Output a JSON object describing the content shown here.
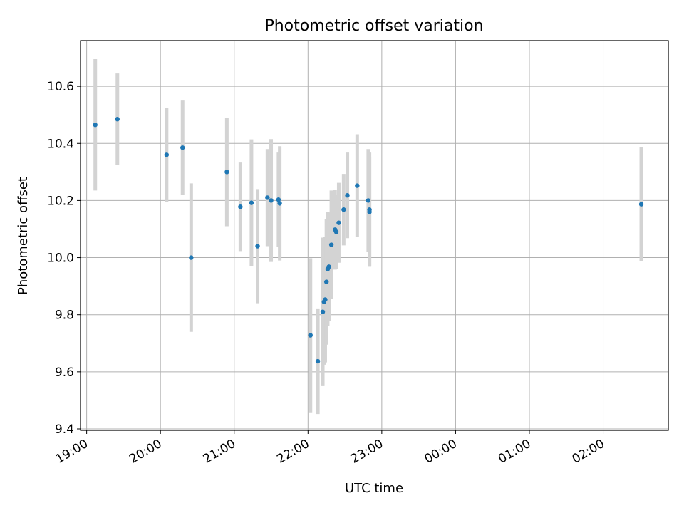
{
  "chart_data": {
    "type": "scatter",
    "title": "Photometric offset variation",
    "xlabel": "UTC time",
    "ylabel": "Photometric offset",
    "xlim": [
      "18:55",
      "02:53"
    ],
    "ylim": [
      9.395,
      10.76
    ],
    "x_ticks": [
      "19:00",
      "20:00",
      "21:00",
      "22:00",
      "23:00",
      "00:00",
      "01:00",
      "02:00"
    ],
    "y_ticks": [
      "9.4",
      "9.6",
      "9.8",
      "10.0",
      "10.2",
      "10.4",
      "10.6"
    ],
    "grid": true,
    "point_color": "#1f77b4",
    "errorbar_color": "#d3d3d3",
    "points": [
      {
        "x": "19:07",
        "y": 10.465,
        "err": 0.23
      },
      {
        "x": "19:25",
        "y": 10.485,
        "err": 0.16
      },
      {
        "x": "20:05",
        "y": 10.36,
        "err": 0.165
      },
      {
        "x": "20:18",
        "y": 10.385,
        "err": 0.165
      },
      {
        "x": "20:25",
        "y": 10.0,
        "err": 0.26
      },
      {
        "x": "20:54",
        "y": 10.3,
        "err": 0.19
      },
      {
        "x": "21:05",
        "y": 10.178,
        "err": 0.155
      },
      {
        "x": "21:14",
        "y": 10.192,
        "err": 0.222
      },
      {
        "x": "21:19",
        "y": 10.04,
        "err": 0.2
      },
      {
        "x": "21:27",
        "y": 10.21,
        "err": 0.17
      },
      {
        "x": "21:30",
        "y": 10.2,
        "err": 0.215
      },
      {
        "x": "21:36",
        "y": 10.203,
        "err": 0.165
      },
      {
        "x": "21:37",
        "y": 10.19,
        "err": 0.2
      },
      {
        "x": "22:02",
        "y": 9.728,
        "err": 0.27
      },
      {
        "x": "22:08",
        "y": 9.637,
        "err": 0.185
      },
      {
        "x": "22:12",
        "y": 9.81,
        "err": 0.26
      },
      {
        "x": "22:13",
        "y": 9.845,
        "err": 0.22
      },
      {
        "x": "22:14",
        "y": 9.853,
        "err": 0.22
      },
      {
        "x": "22:15",
        "y": 9.915,
        "err": 0.22
      },
      {
        "x": "22:16",
        "y": 9.96,
        "err": 0.2
      },
      {
        "x": "22:17",
        "y": 9.968,
        "err": 0.19
      },
      {
        "x": "22:19",
        "y": 10.045,
        "err": 0.19
      },
      {
        "x": "22:22",
        "y": 10.098,
        "err": 0.14
      },
      {
        "x": "22:23",
        "y": 10.09,
        "err": 0.13
      },
      {
        "x": "22:25",
        "y": 10.122,
        "err": 0.14
      },
      {
        "x": "22:29",
        "y": 10.168,
        "err": 0.125
      },
      {
        "x": "22:32",
        "y": 10.218,
        "err": 0.15
      },
      {
        "x": "22:40",
        "y": 10.252,
        "err": 0.18
      },
      {
        "x": "22:49",
        "y": 10.2,
        "err": 0.18
      },
      {
        "x": "22:50",
        "y": 10.16,
        "err": 0.19
      },
      {
        "x": "22:50",
        "y": 10.168,
        "err": 0.2
      },
      {
        "x": "02:31",
        "y": 10.187,
        "err": 0.2
      }
    ]
  }
}
